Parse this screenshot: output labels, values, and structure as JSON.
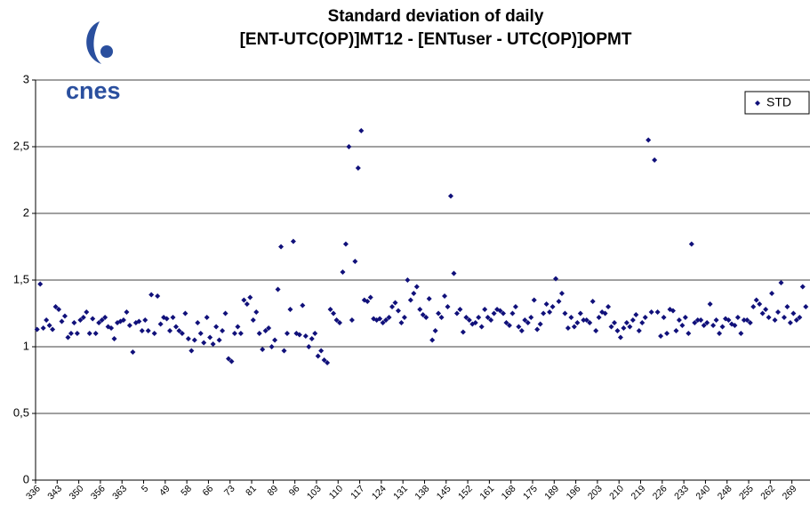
{
  "logo_text": "cnes",
  "chart_data": {
    "type": "scatter",
    "title": [
      "Standard deviation of daily",
      "[ENT-UTC(OP)]MT12 - [ENTuser - UTC(OP)]OPMT"
    ],
    "categories": [
      "336",
      null,
      null,
      null,
      null,
      null,
      null,
      "343",
      null,
      null,
      null,
      null,
      null,
      null,
      "350",
      null,
      null,
      null,
      null,
      null,
      null,
      "356",
      null,
      null,
      null,
      null,
      null,
      null,
      "363",
      null,
      null,
      null,
      null,
      null,
      null,
      "5",
      null,
      null,
      null,
      null,
      null,
      null,
      "49",
      null,
      null,
      null,
      null,
      null,
      null,
      "58",
      null,
      null,
      null,
      null,
      null,
      null,
      "66",
      null,
      null,
      null,
      null,
      null,
      null,
      "73",
      null,
      null,
      null,
      null,
      null,
      null,
      "81",
      null,
      null,
      null,
      null,
      null,
      null,
      "89",
      null,
      null,
      null,
      null,
      null,
      null,
      "96",
      null,
      null,
      null,
      null,
      null,
      null,
      "103",
      null,
      null,
      null,
      null,
      null,
      null,
      "110",
      null,
      null,
      null,
      null,
      null,
      null,
      "117",
      null,
      null,
      null,
      null,
      null,
      null,
      "124",
      null,
      null,
      null,
      null,
      null,
      null,
      "131",
      null,
      null,
      null,
      null,
      null,
      null,
      "138",
      null,
      null,
      null,
      null,
      null,
      null,
      "145",
      null,
      null,
      null,
      null,
      null,
      null,
      "152",
      null,
      null,
      null,
      null,
      null,
      null,
      "161",
      null,
      null,
      null,
      null,
      null,
      null,
      "168",
      null,
      null,
      null,
      null,
      null,
      null,
      "175",
      null,
      null,
      null,
      null,
      null,
      null,
      "189",
      null,
      null,
      null,
      null,
      null,
      null,
      "196",
      null,
      null,
      null,
      null,
      null,
      null,
      "203",
      null,
      null,
      null,
      null,
      null,
      null,
      "210",
      null,
      null,
      null,
      null,
      null,
      null,
      "219",
      null,
      null,
      null,
      null,
      null,
      null,
      "226",
      null,
      null,
      null,
      null,
      null,
      null,
      "233",
      null,
      null,
      null,
      null,
      null,
      null,
      "240",
      null,
      null,
      null,
      null,
      null,
      null,
      "248",
      null,
      null,
      null,
      null,
      null,
      null,
      "255",
      null,
      null,
      null,
      null,
      null,
      null,
      "262",
      null,
      null,
      null,
      null,
      null,
      null,
      "269",
      null,
      null,
      null,
      null
    ],
    "series": [
      {
        "name": "STD",
        "color": "#10107a",
        "values": [
          1.13,
          1.47,
          1.14,
          1.2,
          1.16,
          1.13,
          1.3,
          1.28,
          1.19,
          1.23,
          1.07,
          1.1,
          1.18,
          1.1,
          1.2,
          1.22,
          1.26,
          1.1,
          1.21,
          1.1,
          1.18,
          1.2,
          1.22,
          1.15,
          1.14,
          1.06,
          1.18,
          1.19,
          1.2,
          1.26,
          1.16,
          0.96,
          1.18,
          1.19,
          1.12,
          1.2,
          1.12,
          1.39,
          1.1,
          1.38,
          1.17,
          1.22,
          1.21,
          1.12,
          1.22,
          1.15,
          1.12,
          1.1,
          1.25,
          1.06,
          0.97,
          1.05,
          1.18,
          1.1,
          1.03,
          1.22,
          1.07,
          1.02,
          1.15,
          1.05,
          1.12,
          1.25,
          0.91,
          0.89,
          1.1,
          1.15,
          1.1,
          1.35,
          1.32,
          1.37,
          1.2,
          1.26,
          1.1,
          0.98,
          1.12,
          1.14,
          1.0,
          1.05,
          1.43,
          1.75,
          0.97,
          1.1,
          1.28,
          1.79,
          1.1,
          1.09,
          1.31,
          1.08,
          1.0,
          1.06,
          1.1,
          0.93,
          0.97,
          0.9,
          0.88,
          1.28,
          1.25,
          1.2,
          1.18,
          1.56,
          1.77,
          2.5,
          1.2,
          1.64,
          2.34,
          2.62,
          1.35,
          1.34,
          1.37,
          1.21,
          1.2,
          1.21,
          1.18,
          1.2,
          1.22,
          1.3,
          1.33,
          1.27,
          1.18,
          1.22,
          1.5,
          1.35,
          1.4,
          1.45,
          1.28,
          1.24,
          1.22,
          1.36,
          1.05,
          1.12,
          1.25,
          1.22,
          1.38,
          1.3,
          2.13,
          1.55,
          1.25,
          1.28,
          1.11,
          1.22,
          1.2,
          1.17,
          1.18,
          1.22,
          1.15,
          1.28,
          1.22,
          1.2,
          1.25,
          1.28,
          1.27,
          1.25,
          1.18,
          1.16,
          1.25,
          1.3,
          1.15,
          1.12,
          1.2,
          1.18,
          1.22,
          1.35,
          1.13,
          1.17,
          1.25,
          1.32,
          1.26,
          1.3,
          1.51,
          1.34,
          1.4,
          1.25,
          1.14,
          1.22,
          1.15,
          1.18,
          1.25,
          1.2,
          1.2,
          1.18,
          1.34,
          1.12,
          1.22,
          1.26,
          1.25,
          1.3,
          1.15,
          1.18,
          1.12,
          1.07,
          1.14,
          1.18,
          1.15,
          1.2,
          1.24,
          1.12,
          1.18,
          1.22,
          2.55,
          1.26,
          2.4,
          1.26,
          1.08,
          1.22,
          1.1,
          1.28,
          1.27,
          1.12,
          1.2,
          1.16,
          1.22,
          1.1,
          1.77,
          1.18,
          1.2,
          1.2,
          1.16,
          1.18,
          1.32,
          1.16,
          1.2,
          1.1,
          1.15,
          1.21,
          1.2,
          1.17,
          1.16,
          1.22,
          1.1,
          1.2,
          1.2,
          1.18,
          1.3,
          1.35,
          1.32,
          1.25,
          1.28,
          1.22,
          1.4,
          1.2,
          1.26,
          1.48,
          1.22,
          1.3,
          1.18,
          1.25,
          1.2,
          1.22,
          1.45,
          1.3
        ]
      }
    ],
    "ylim": [
      0,
      3
    ],
    "yticks": [
      0,
      {
        "value": 0.5,
        "label": "0,5"
      },
      1,
      {
        "value": 1.5,
        "label": "1,5"
      },
      2,
      {
        "value": 2.5,
        "label": "2,5"
      },
      3
    ],
    "grid": true,
    "legend": "top-right"
  }
}
